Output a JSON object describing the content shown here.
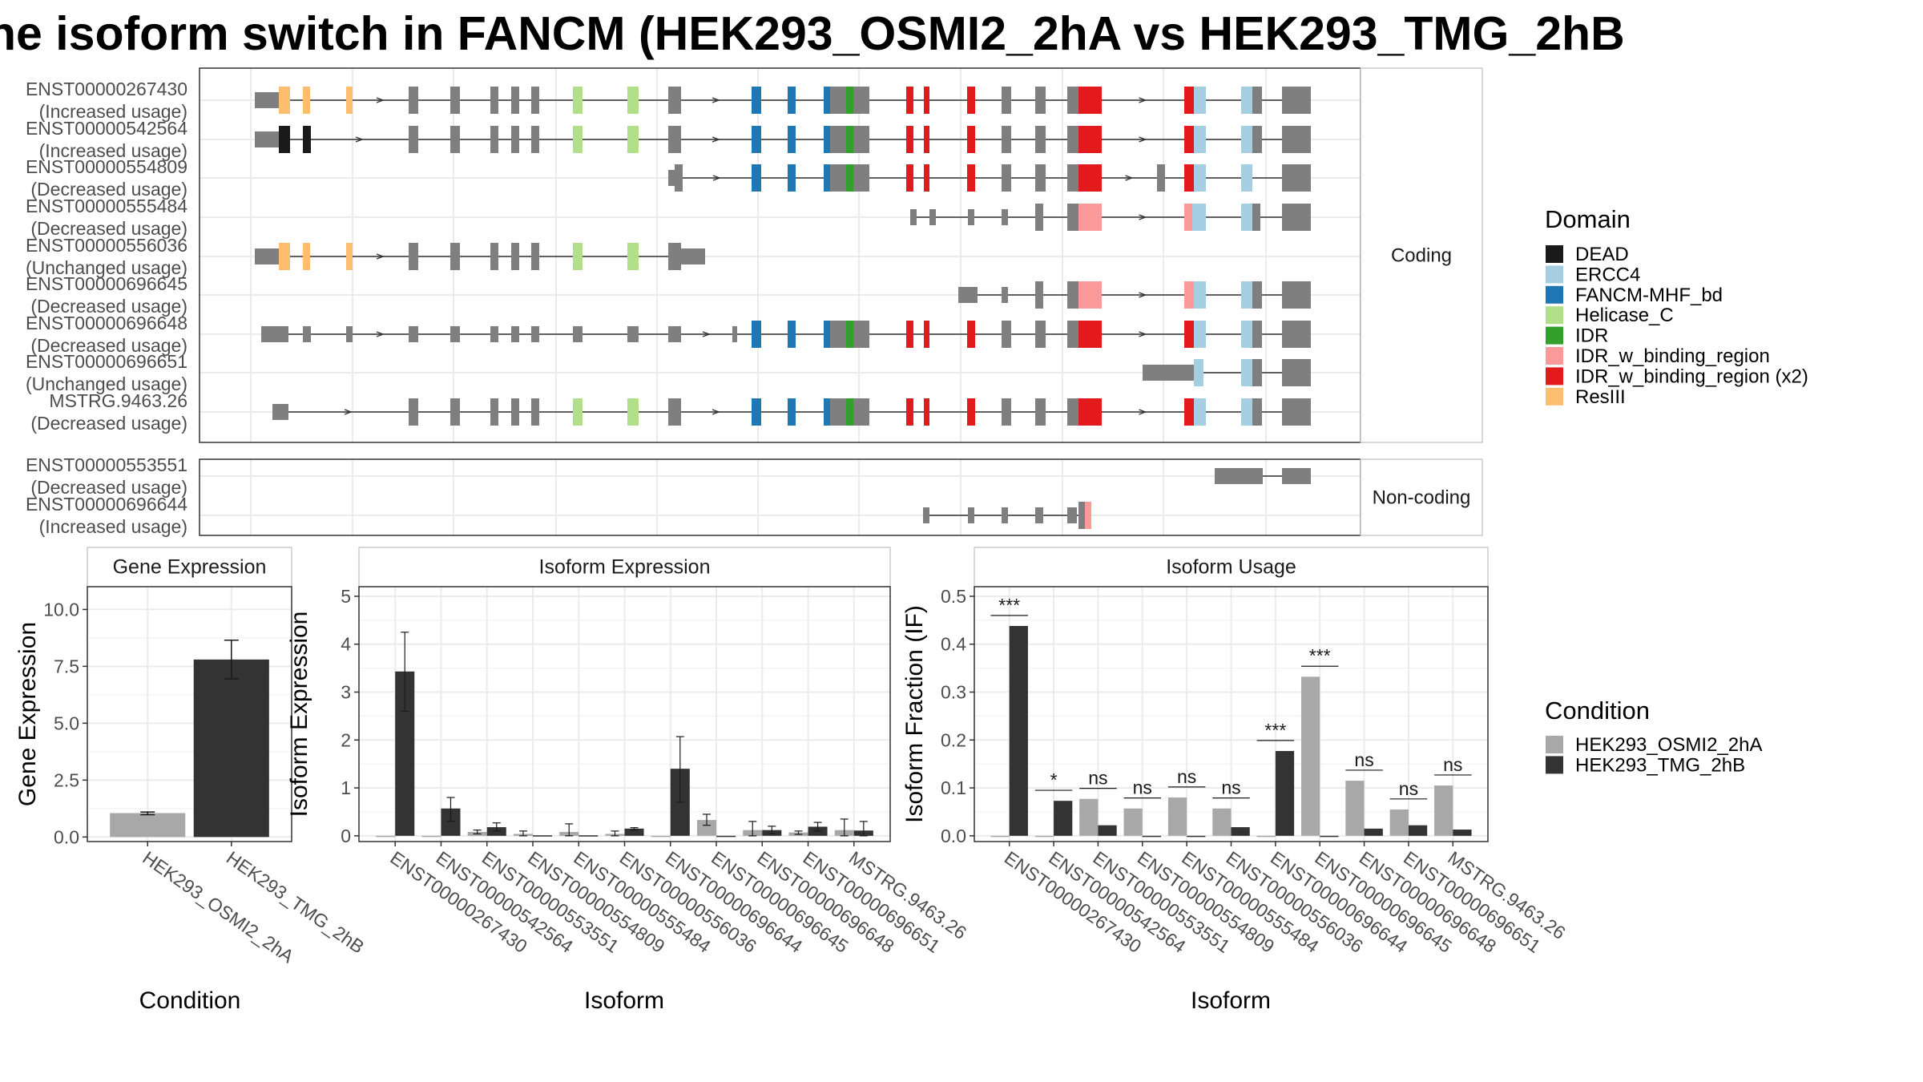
{
  "title": "he isoform switch in FANCM (HEK293_OSMI2_2hA vs HEK293_TMG_2hB",
  "colors": {
    "DEAD": "#1a1a1a",
    "ERCC4": "#a6cee3",
    "FANCM-MHF_bd": "#1f78b4",
    "Helicase_C": "#b2df8a",
    "IDR": "#33a02c",
    "IDR_w_binding_region": "#fb9a99",
    "IDR_w_binding_region (x2)": "#e31a1c",
    "ResIII": "#fdbf6f",
    "exon": "#7f7f7f",
    "osmi": "#a8a8a8",
    "tmg": "#333333"
  },
  "transcripts": {
    "coding_strip": "Coding",
    "noncoding_strip": "Non-coding",
    "coding": [
      {
        "id": "ENST00000267430",
        "usage": "(Increased usage)"
      },
      {
        "id": "ENST00000542564",
        "usage": "(Increased usage)"
      },
      {
        "id": "ENST00000554809",
        "usage": "(Decreased usage)"
      },
      {
        "id": "ENST00000555484",
        "usage": "(Decreased usage)"
      },
      {
        "id": "ENST00000556036",
        "usage": "(Unchanged usage)"
      },
      {
        "id": "ENST00000696645",
        "usage": "(Decreased usage)"
      },
      {
        "id": "ENST00000696648",
        "usage": "(Decreased usage)"
      },
      {
        "id": "ENST00000696651",
        "usage": "(Unchanged usage)"
      },
      {
        "id": "MSTRG.9463.26",
        "usage": "(Decreased usage)"
      }
    ],
    "noncoding": [
      {
        "id": "ENST00000553551",
        "usage": "(Decreased usage)"
      },
      {
        "id": "ENST00000696644",
        "usage": "(Increased usage)"
      }
    ]
  },
  "domain_legend": {
    "title": "Domain",
    "items": [
      "DEAD",
      "ERCC4",
      "FANCM-MHF_bd",
      "Helicase_C",
      "IDR",
      "IDR_w_binding_region",
      "IDR_w_binding_region (x2)",
      "ResIII"
    ]
  },
  "condition_legend": {
    "title": "Condition",
    "items": [
      "HEK293_OSMI2_2hA",
      "HEK293_TMG_2hB"
    ]
  },
  "chart_data": [
    {
      "type": "bar",
      "title": "Gene Expression",
      "xlabel": "Condition",
      "ylabel": "Gene Expression",
      "categories": [
        "HEK293_OSMI2_2hA",
        "HEK293_TMG_2hB"
      ],
      "values": [
        1.05,
        7.8
      ],
      "errors": [
        [
          0.98,
          1.1
        ],
        [
          6.95,
          8.65
        ]
      ],
      "ylim": [
        -0.2,
        11.0
      ],
      "yticks": [
        0.0,
        2.5,
        5.0,
        7.5,
        10.0
      ],
      "ytick_labels": [
        "0.0",
        "2.5",
        "5.0",
        "7.5",
        "10.0"
      ]
    },
    {
      "type": "bar",
      "title": "Isoform Expression",
      "xlabel": "Isoform",
      "ylabel": "Isoform Expression",
      "categories": [
        "ENST00000267430",
        "ENST00000542564",
        "ENST00000553551",
        "ENST00000554809",
        "ENST00000555484",
        "ENST00000556036",
        "ENST00000696644",
        "ENST00000696645",
        "ENST00000696648",
        "ENST00000696651",
        "MSTRG.9463.26"
      ],
      "series": [
        {
          "name": "HEK293_OSMI2_2hA",
          "values": [
            0.0,
            0.0,
            0.08,
            0.04,
            0.08,
            0.04,
            0.0,
            0.33,
            0.12,
            0.07,
            0.12
          ],
          "errors": [
            [
              0.0,
              0.0
            ],
            [
              0.0,
              0.0
            ],
            [
              0.04,
              0.12
            ],
            [
              0.0,
              0.1
            ],
            [
              0.0,
              0.25
            ],
            [
              0.0,
              0.1
            ],
            [
              0.0,
              0.0
            ],
            [
              0.22,
              0.45
            ],
            [
              0.0,
              0.3
            ],
            [
              0.03,
              0.1
            ],
            [
              0.0,
              0.35
            ]
          ]
        },
        {
          "name": "HEK293_TMG_2hB",
          "values": [
            3.43,
            0.57,
            0.18,
            0.01,
            0.01,
            0.15,
            1.4,
            0.0,
            0.12,
            0.19,
            0.11
          ],
          "errors": [
            [
              2.6,
              4.25
            ],
            [
              0.3,
              0.8
            ],
            [
              0.1,
              0.27
            ],
            [
              0.0,
              0.0
            ],
            [
              0.0,
              0.0
            ],
            [
              0.12,
              0.17
            ],
            [
              0.7,
              2.07
            ],
            [
              0.0,
              0.0
            ],
            [
              0.05,
              0.2
            ],
            [
              0.1,
              0.28
            ],
            [
              0.0,
              0.3
            ]
          ]
        }
      ],
      "ylim": [
        -0.12,
        5.2
      ],
      "yticks": [
        0,
        1,
        2,
        3,
        4,
        5
      ],
      "ytick_labels": [
        "0",
        "1",
        "2",
        "3",
        "4",
        "5"
      ]
    },
    {
      "type": "bar",
      "title": "Isoform Usage",
      "xlabel": "Isoform",
      "ylabel": "Isoform Fraction (IF)",
      "categories": [
        "ENST00000267430",
        "ENST00000542564",
        "ENST00000553551",
        "ENST00000554809",
        "ENST00000555484",
        "ENST00000556036",
        "ENST00000696644",
        "ENST00000696645",
        "ENST00000696648",
        "ENST00000696651",
        "MSTRG.9463.26"
      ],
      "series": [
        {
          "name": "HEK293_OSMI2_2hA",
          "values": [
            0.0,
            0.0,
            0.077,
            0.057,
            0.08,
            0.057,
            0.0,
            0.332,
            0.115,
            0.055,
            0.105
          ]
        },
        {
          "name": "HEK293_TMG_2hB",
          "values": [
            0.438,
            0.073,
            0.022,
            0.0,
            0.0,
            0.018,
            0.177,
            0.0,
            0.015,
            0.022,
            0.013
          ]
        }
      ],
      "significance": [
        "***",
        "*",
        "ns",
        "ns",
        "ns",
        "ns",
        "***",
        "***",
        "ns",
        "ns",
        "ns"
      ],
      "ylim": [
        -0.012,
        0.52
      ],
      "yticks": [
        0.0,
        0.1,
        0.2,
        0.3,
        0.4,
        0.5
      ],
      "ytick_labels": [
        "0.0",
        "0.1",
        "0.2",
        "0.3",
        "0.4",
        "0.5"
      ]
    }
  ]
}
